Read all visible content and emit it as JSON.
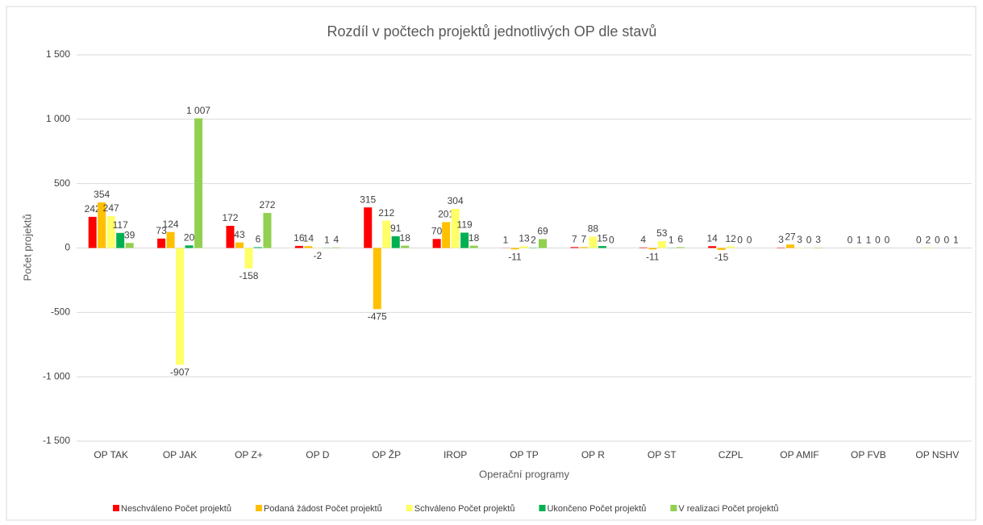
{
  "chart_data": {
    "type": "bar",
    "title": "Rozdíl v počtech projektů jednotlivých OP dle stavů",
    "x_label": "Operační programy",
    "y_label": "Počet projektů",
    "categories": [
      "OP TAK",
      "OP JAK",
      "OP Z+",
      "OP D",
      "OP ŽP",
      "IROP",
      "OP TP",
      "OP R",
      "OP ST",
      "CZPL",
      "OP AMIF",
      "OP FVB",
      "OP NSHV"
    ],
    "series": [
      {
        "name": "Neschváleno Počet projektů",
        "color": "#ff0000",
        "values": [
          242,
          73,
          172,
          16,
          315,
          70,
          1,
          7,
          4,
          14,
          3,
          0,
          0
        ]
      },
      {
        "name": "Podaná žádost Počet projektů",
        "color": "#ffc000",
        "values": [
          354,
          124,
          43,
          14,
          -475,
          201,
          -11,
          7,
          -11,
          -15,
          27,
          1,
          2
        ]
      },
      {
        "name": "Schváleno Počet projektů",
        "color": "#ffff66",
        "values": [
          247,
          -907,
          -158,
          -2,
          212,
          304,
          13,
          88,
          53,
          12,
          3,
          1,
          0
        ]
      },
      {
        "name": "Ukončeno Počet projektů",
        "color": "#00b050",
        "values": [
          117,
          20,
          6,
          1,
          91,
          119,
          2,
          15,
          1,
          0,
          0,
          0,
          0
        ]
      },
      {
        "name": "V realizaci Počet projektů",
        "color": "#92d050",
        "values": [
          39,
          1007,
          272,
          4,
          18,
          18,
          69,
          0,
          6,
          0,
          3,
          0,
          1
        ],
        "value_labels": [
          "39",
          "1 007",
          "272",
          "4",
          "18",
          "18",
          "69",
          "0",
          "6",
          "0",
          "3",
          "0",
          "1"
        ]
      }
    ],
    "ylim": [
      -1500,
      1500
    ],
    "yticks": [
      {
        "value": -1500,
        "label": "-1 500"
      },
      {
        "value": -1000,
        "label": "-1 000"
      },
      -500,
      0,
      500,
      {
        "value": 1000,
        "label": "1 000"
      },
      {
        "value": 1500,
        "label": "1 500"
      }
    ],
    "grid": true,
    "legend": "bottom"
  }
}
